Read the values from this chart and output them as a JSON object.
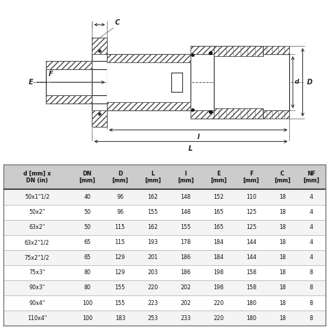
{
  "table_headers": [
    "d [mm] x\nDN (in)",
    "DN\n[mm]",
    "D\n[mm]",
    "L\n[mm]",
    "l\n[mm]",
    "E\n[mm]",
    "F\n[mm]",
    "C\n[mm]",
    "NF\n[mm]"
  ],
  "table_data": [
    [
      "50x1\"1/2",
      "40",
      "96",
      "162",
      "148",
      "152",
      "110",
      "18",
      "4"
    ],
    [
      "50x2\"",
      "50",
      "96",
      "155",
      "148",
      "165",
      "125",
      "18",
      "4"
    ],
    [
      "63x2\"",
      "50",
      "115",
      "162",
      "155",
      "165",
      "125",
      "18",
      "4"
    ],
    [
      "63x2\"1/2",
      "65",
      "115",
      "193",
      "178",
      "184",
      "144",
      "18",
      "4"
    ],
    [
      "75x2\"1/2",
      "65",
      "129",
      "201",
      "186",
      "184",
      "144",
      "18",
      "4"
    ],
    [
      "75x3\"",
      "80",
      "129",
      "203",
      "186",
      "198",
      "158",
      "18",
      "8"
    ],
    [
      "90x3\"",
      "80",
      "155",
      "220",
      "202",
      "198",
      "158",
      "18",
      "8"
    ],
    [
      "90x4\"",
      "100",
      "155",
      "223",
      "202",
      "220",
      "180",
      "18",
      "8"
    ],
    [
      "110x4\"",
      "100",
      "183",
      "253",
      "233",
      "220",
      "180",
      "18",
      "8"
    ]
  ],
  "bg_color": "#ffffff",
  "header_bg": "#cccccc",
  "row_bg_alt": "#f4f4f4",
  "border_color": "#999999",
  "text_color": "#111111",
  "lc": "#222222"
}
